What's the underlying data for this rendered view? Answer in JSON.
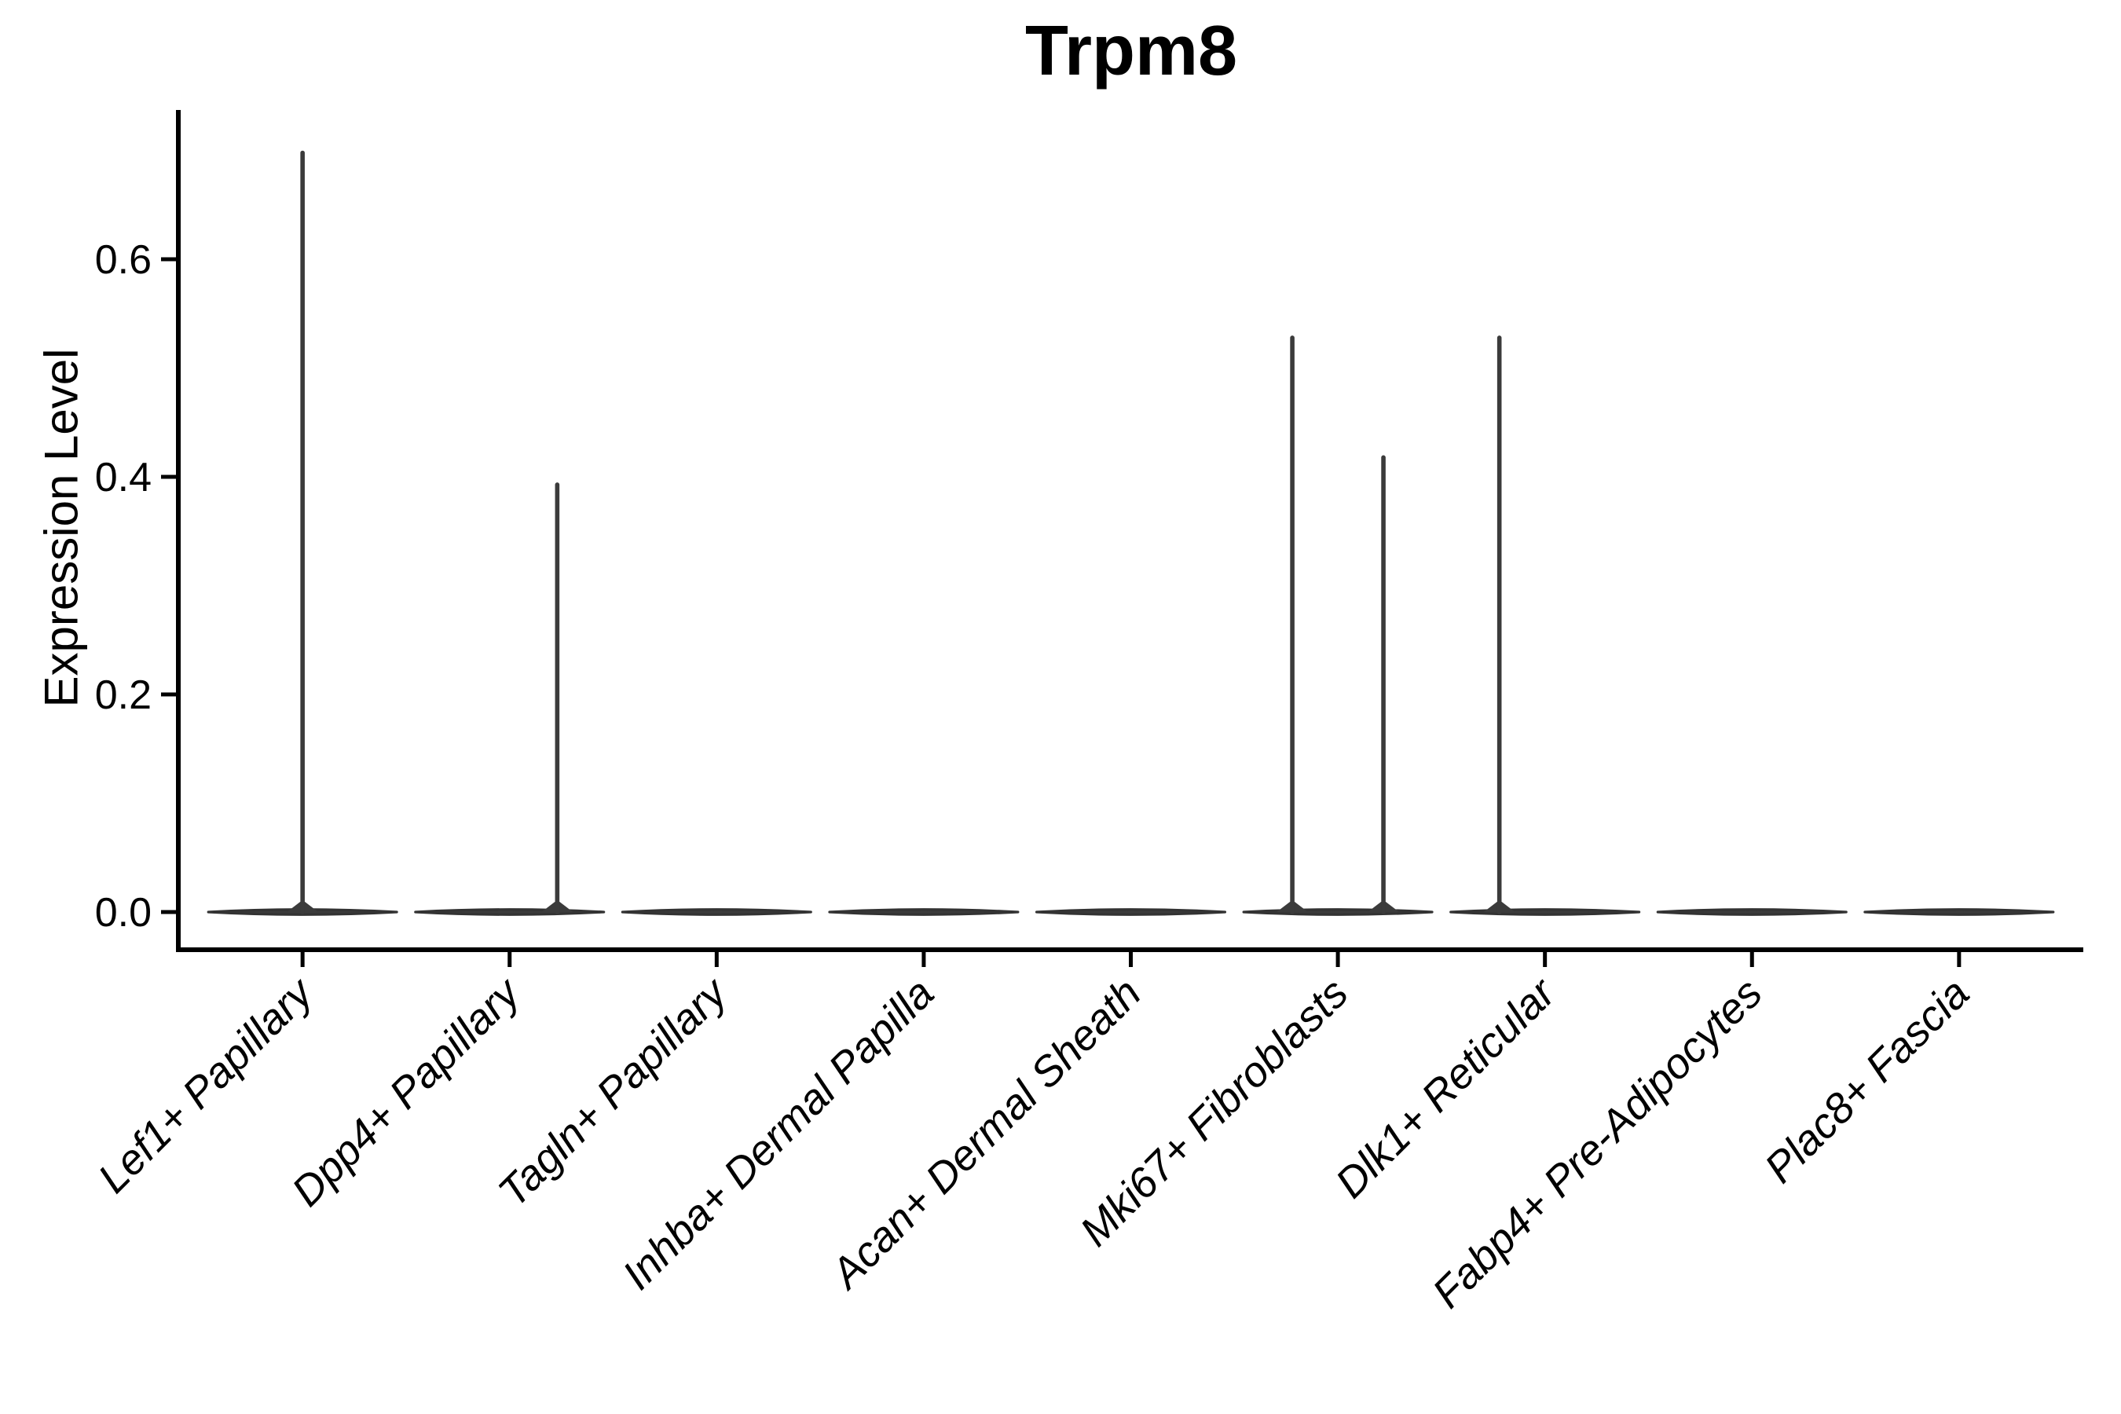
{
  "chart_data": {
    "type": "violin",
    "title": "Trpm8",
    "ylabel": "Expression Level",
    "xlabel": "",
    "grid": false,
    "legend": "none",
    "ylim": [
      -0.035,
      0.737
    ],
    "ytick_values": [
      0.0,
      0.2,
      0.4,
      0.6
    ],
    "ytick_labels": [
      "0.0",
      "0.2",
      "0.4",
      "0.6"
    ],
    "categories": [
      "Lef1+ Papillary",
      "Dpp4+ Papillary",
      "Tagln+ Papillary",
      "Inhba+ Dermal Papilla",
      "Acan+ Dermal Sheath",
      "Mki67+ Fibroblasts",
      "Dlk1+ Reticular",
      "Fabp4+ Pre-Adipocytes",
      "Plac8+ Fascia"
    ],
    "violins": [
      {
        "category": "Lef1+ Papillary",
        "baseline_value": 0.0,
        "max_value": 0.7,
        "spikes": [
          {
            "offset_units": 0.0,
            "top": 0.7
          }
        ]
      },
      {
        "category": "Dpp4+ Papillary",
        "baseline_value": 0.0,
        "max_value": 0.395,
        "spikes": [
          {
            "offset_units": 0.23,
            "top": 0.395
          }
        ]
      },
      {
        "category": "Tagln+ Papillary",
        "baseline_value": 0.0,
        "max_value": 0.0,
        "spikes": []
      },
      {
        "category": "Inhba+ Dermal Papilla",
        "baseline_value": 0.0,
        "max_value": 0.0,
        "spikes": []
      },
      {
        "category": "Acan+ Dermal Sheath",
        "baseline_value": 0.0,
        "max_value": 0.0,
        "spikes": []
      },
      {
        "category": "Mki67+ Fibroblasts",
        "baseline_value": 0.0,
        "max_value": 0.53,
        "spikes": [
          {
            "offset_units": -0.22,
            "top": 0.53
          },
          {
            "offset_units": 0.22,
            "top": 0.42
          }
        ]
      },
      {
        "category": "Dlk1+ Reticular",
        "baseline_value": 0.0,
        "max_value": 0.53,
        "spikes": [
          {
            "offset_units": -0.22,
            "top": 0.53
          }
        ]
      },
      {
        "category": "Fabp4+ Pre-Adipocytes",
        "baseline_value": 0.0,
        "max_value": 0.0,
        "spikes": []
      },
      {
        "category": "Plac8+ Fascia",
        "baseline_value": 0.0,
        "max_value": 0.0,
        "spikes": []
      }
    ],
    "violin_width_units": 0.91,
    "colors": {
      "violin_fill": "#3b3b3b",
      "violin_stroke": "#333333",
      "axis": "#000000",
      "text": "#000000",
      "background": "#ffffff"
    }
  }
}
